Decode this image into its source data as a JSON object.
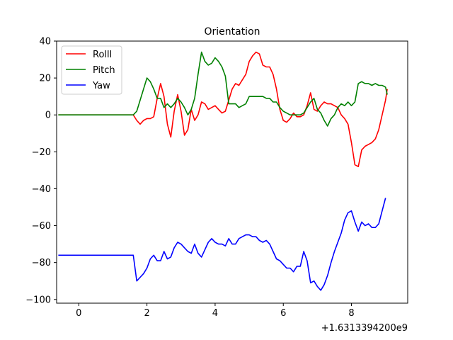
{
  "chart_data": {
    "type": "line",
    "title": "Orientation",
    "xlabel": "",
    "ylabel": "",
    "xlim": [
      -0.65,
      9.65
    ],
    "ylim": [
      -102,
      40
    ],
    "x_offset_label": "+1.6313394200e9",
    "x_ticks": [
      0,
      2,
      4,
      6,
      8
    ],
    "y_ticks": [
      40,
      20,
      0,
      -20,
      -40,
      -60,
      -80,
      -100
    ],
    "legend_position": "upper-left",
    "series": [
      {
        "name": "Rolll",
        "color": "#ff0000",
        "points": [
          [
            -0.6,
            0
          ],
          [
            1.6,
            0
          ],
          [
            1.7,
            -3
          ],
          [
            1.8,
            -5
          ],
          [
            1.9,
            -3
          ],
          [
            2.0,
            -2
          ],
          [
            2.1,
            -2
          ],
          [
            2.2,
            -1
          ],
          [
            2.3,
            9
          ],
          [
            2.4,
            17
          ],
          [
            2.5,
            10
          ],
          [
            2.6,
            -5
          ],
          [
            2.7,
            -12
          ],
          [
            2.8,
            2
          ],
          [
            2.9,
            11
          ],
          [
            3.0,
            2
          ],
          [
            3.1,
            -11
          ],
          [
            3.2,
            -8
          ],
          [
            3.3,
            3
          ],
          [
            3.4,
            -3
          ],
          [
            3.5,
            0
          ],
          [
            3.6,
            7
          ],
          [
            3.7,
            6
          ],
          [
            3.8,
            3
          ],
          [
            3.9,
            4
          ],
          [
            4.0,
            5
          ],
          [
            4.1,
            3
          ],
          [
            4.2,
            1
          ],
          [
            4.3,
            2
          ],
          [
            4.4,
            8
          ],
          [
            4.5,
            14
          ],
          [
            4.6,
            17
          ],
          [
            4.7,
            16
          ],
          [
            4.8,
            19
          ],
          [
            4.9,
            22
          ],
          [
            5.0,
            29
          ],
          [
            5.1,
            32
          ],
          [
            5.2,
            34
          ],
          [
            5.3,
            33
          ],
          [
            5.4,
            27
          ],
          [
            5.5,
            26
          ],
          [
            5.6,
            26
          ],
          [
            5.7,
            22
          ],
          [
            5.8,
            14
          ],
          [
            5.9,
            3
          ],
          [
            6.0,
            -3
          ],
          [
            6.1,
            -4
          ],
          [
            6.2,
            -2
          ],
          [
            6.3,
            1
          ],
          [
            6.4,
            -1
          ],
          [
            6.5,
            -1
          ],
          [
            6.6,
            0
          ],
          [
            6.7,
            5
          ],
          [
            6.8,
            12
          ],
          [
            6.9,
            3
          ],
          [
            7.0,
            2
          ],
          [
            7.1,
            5
          ],
          [
            7.2,
            7
          ],
          [
            7.3,
            6
          ],
          [
            7.4,
            6
          ],
          [
            7.5,
            5
          ],
          [
            7.6,
            4
          ],
          [
            7.7,
            0
          ],
          [
            7.8,
            -2
          ],
          [
            7.9,
            -5
          ],
          [
            8.0,
            -15
          ],
          [
            8.1,
            -27
          ],
          [
            8.2,
            -28
          ],
          [
            8.3,
            -19
          ],
          [
            8.4,
            -17
          ],
          [
            8.5,
            -16
          ],
          [
            8.6,
            -15
          ],
          [
            8.7,
            -13
          ],
          [
            8.8,
            -8
          ],
          [
            8.9,
            0
          ],
          [
            9.0,
            8
          ],
          [
            9.05,
            14
          ]
        ]
      },
      {
        "name": "Pitch",
        "color": "#008000",
        "points": [
          [
            -0.6,
            0
          ],
          [
            1.6,
            0
          ],
          [
            1.7,
            2
          ],
          [
            1.8,
            8
          ],
          [
            1.9,
            14
          ],
          [
            2.0,
            20
          ],
          [
            2.1,
            18
          ],
          [
            2.2,
            14
          ],
          [
            2.3,
            9
          ],
          [
            2.4,
            9
          ],
          [
            2.5,
            4
          ],
          [
            2.6,
            6
          ],
          [
            2.7,
            4
          ],
          [
            2.8,
            6
          ],
          [
            2.9,
            9
          ],
          [
            3.0,
            7
          ],
          [
            3.1,
            4
          ],
          [
            3.2,
            0
          ],
          [
            3.3,
            3
          ],
          [
            3.4,
            9
          ],
          [
            3.5,
            22
          ],
          [
            3.6,
            34
          ],
          [
            3.7,
            29
          ],
          [
            3.8,
            27
          ],
          [
            3.9,
            28
          ],
          [
            4.0,
            31
          ],
          [
            4.1,
            29
          ],
          [
            4.2,
            26
          ],
          [
            4.3,
            21
          ],
          [
            4.4,
            6
          ],
          [
            4.5,
            6
          ],
          [
            4.6,
            6
          ],
          [
            4.7,
            4
          ],
          [
            4.8,
            5
          ],
          [
            4.9,
            6
          ],
          [
            5.0,
            10
          ],
          [
            5.1,
            10
          ],
          [
            5.2,
            10
          ],
          [
            5.3,
            10
          ],
          [
            5.4,
            10
          ],
          [
            5.5,
            9
          ],
          [
            5.6,
            9
          ],
          [
            5.7,
            7
          ],
          [
            5.8,
            7
          ],
          [
            5.9,
            4
          ],
          [
            6.0,
            2
          ],
          [
            6.1,
            1
          ],
          [
            6.2,
            0
          ],
          [
            6.3,
            0
          ],
          [
            6.4,
            0
          ],
          [
            6.5,
            0
          ],
          [
            6.6,
            1
          ],
          [
            6.7,
            4
          ],
          [
            6.8,
            7
          ],
          [
            6.9,
            9
          ],
          [
            7.0,
            3
          ],
          [
            7.1,
            1
          ],
          [
            7.2,
            -3
          ],
          [
            7.3,
            -6
          ],
          [
            7.4,
            -2
          ],
          [
            7.5,
            0
          ],
          [
            7.6,
            4
          ],
          [
            7.7,
            6
          ],
          [
            7.8,
            5
          ],
          [
            7.9,
            7
          ],
          [
            8.0,
            5
          ],
          [
            8.1,
            7
          ],
          [
            8.2,
            17
          ],
          [
            8.3,
            18
          ],
          [
            8.4,
            17
          ],
          [
            8.5,
            17
          ],
          [
            8.6,
            16
          ],
          [
            8.7,
            17
          ],
          [
            8.8,
            16
          ],
          [
            8.9,
            16
          ],
          [
            9.0,
            15
          ],
          [
            9.05,
            11
          ]
        ]
      },
      {
        "name": "Yaw",
        "color": "#0000ff",
        "points": [
          [
            -0.6,
            -76
          ],
          [
            1.6,
            -76
          ],
          [
            1.7,
            -90
          ],
          [
            1.8,
            -88
          ],
          [
            1.9,
            -86
          ],
          [
            2.0,
            -83
          ],
          [
            2.1,
            -78
          ],
          [
            2.2,
            -76
          ],
          [
            2.3,
            -79
          ],
          [
            2.4,
            -79
          ],
          [
            2.5,
            -74
          ],
          [
            2.6,
            -78
          ],
          [
            2.7,
            -77
          ],
          [
            2.8,
            -72
          ],
          [
            2.9,
            -69
          ],
          [
            3.0,
            -70
          ],
          [
            3.1,
            -72
          ],
          [
            3.2,
            -74
          ],
          [
            3.3,
            -75
          ],
          [
            3.4,
            -70
          ],
          [
            3.5,
            -75
          ],
          [
            3.6,
            -77
          ],
          [
            3.7,
            -73
          ],
          [
            3.8,
            -69
          ],
          [
            3.9,
            -67
          ],
          [
            4.0,
            -69
          ],
          [
            4.1,
            -70
          ],
          [
            4.2,
            -70
          ],
          [
            4.3,
            -71
          ],
          [
            4.4,
            -67
          ],
          [
            4.5,
            -70
          ],
          [
            4.6,
            -70
          ],
          [
            4.7,
            -67
          ],
          [
            4.8,
            -66
          ],
          [
            4.9,
            -65
          ],
          [
            5.0,
            -65
          ],
          [
            5.1,
            -66
          ],
          [
            5.2,
            -66
          ],
          [
            5.3,
            -68
          ],
          [
            5.4,
            -69
          ],
          [
            5.5,
            -68
          ],
          [
            5.6,
            -70
          ],
          [
            5.7,
            -74
          ],
          [
            5.8,
            -78
          ],
          [
            5.9,
            -79
          ],
          [
            6.0,
            -81
          ],
          [
            6.1,
            -83
          ],
          [
            6.2,
            -83
          ],
          [
            6.3,
            -85
          ],
          [
            6.4,
            -82
          ],
          [
            6.5,
            -82
          ],
          [
            6.6,
            -74
          ],
          [
            6.7,
            -79
          ],
          [
            6.8,
            -91
          ],
          [
            6.9,
            -90
          ],
          [
            7.0,
            -93
          ],
          [
            7.1,
            -95
          ],
          [
            7.2,
            -92
          ],
          [
            7.3,
            -87
          ],
          [
            7.4,
            -80
          ],
          [
            7.5,
            -74
          ],
          [
            7.6,
            -69
          ],
          [
            7.7,
            -64
          ],
          [
            7.8,
            -57
          ],
          [
            7.9,
            -53
          ],
          [
            8.0,
            -52
          ],
          [
            8.1,
            -58
          ],
          [
            8.2,
            -63
          ],
          [
            8.3,
            -58
          ],
          [
            8.4,
            -60
          ],
          [
            8.5,
            -59
          ],
          [
            8.6,
            -61
          ],
          [
            8.7,
            -61
          ],
          [
            8.8,
            -59
          ],
          [
            8.9,
            -52
          ],
          [
            9.0,
            -45
          ]
        ]
      }
    ]
  }
}
